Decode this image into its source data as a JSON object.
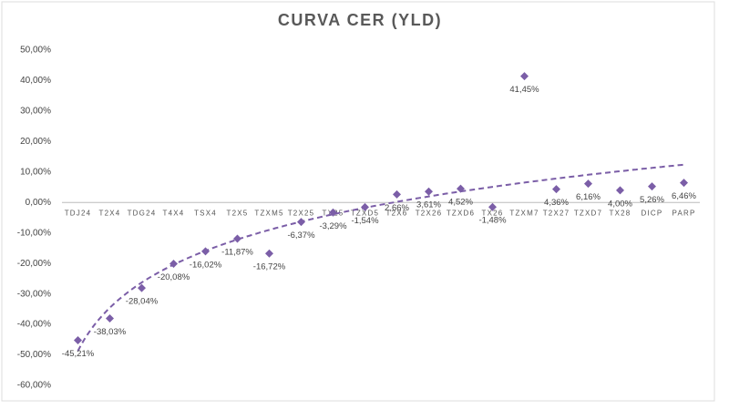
{
  "chart_data": {
    "type": "scatter",
    "title": "CURVA CER (YLD)",
    "categories": [
      "TDJ24",
      "T2X4",
      "TDG24",
      "T4X4",
      "TSX4",
      "T2X5",
      "TZXM5",
      "T2X25",
      "TX25",
      "TZXD5",
      "T2X6",
      "T2X26",
      "TZXD6",
      "TX26",
      "TZXM7",
      "T2X27",
      "TZXD7",
      "TX28",
      "DICP",
      "PARP"
    ],
    "values": [
      -45.21,
      -38.03,
      -28.04,
      -20.08,
      -16.02,
      -11.87,
      -16.72,
      -6.37,
      -3.29,
      -1.54,
      2.66,
      3.61,
      4.52,
      -1.48,
      41.45,
      4.36,
      6.16,
      4.0,
      5.26,
      6.46
    ],
    "value_labels": [
      "-45,21%",
      "-38,03%",
      "-28,04%",
      "-20,08%",
      "-16,02%",
      "-11,87%",
      "-16,72%",
      "-6,37%",
      "-3,29%",
      "-1,54%",
      "2,66%",
      "3,61%",
      "4,52%",
      "-1,48%",
      "41,45%",
      "4,36%",
      "6,16%",
      "4,00%",
      "5,26%",
      "6,46%"
    ],
    "color": "#7b5ea7",
    "trendline": "logarithmic",
    "ylim": [
      -60,
      50
    ],
    "yticks": [
      {
        "value": -60,
        "label": "-60,00%"
      },
      {
        "value": -50,
        "label": "-50,00%"
      },
      {
        "value": -40,
        "label": "-40,00%"
      },
      {
        "value": -30,
        "label": "-30,00%"
      },
      {
        "value": -20,
        "label": "-20,00%"
      },
      {
        "value": -10,
        "label": "-10,00%"
      },
      {
        "value": 0,
        "label": "0,00%"
      },
      {
        "value": 10,
        "label": "10,00%"
      },
      {
        "value": 20,
        "label": "20,00%"
      },
      {
        "value": 30,
        "label": "30,00%"
      },
      {
        "value": 40,
        "label": "40,00%"
      },
      {
        "value": 50,
        "label": "50,00%"
      }
    ],
    "grid": false
  }
}
